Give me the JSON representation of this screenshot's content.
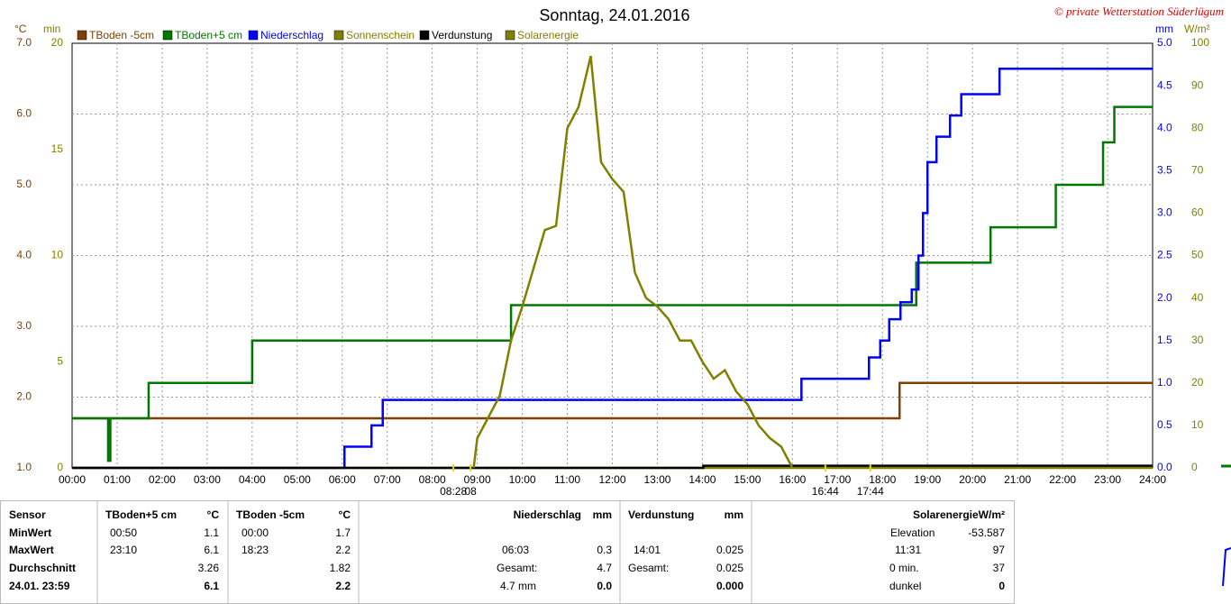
{
  "chart_data": {
    "type": "line",
    "title": "Sonntag, 24.01.2016",
    "credit": "© private Wetterstation Süderlügum",
    "axis_units": {
      "y": "°C",
      "y3": "min",
      "y2": "mm",
      "y4": "W/m²"
    },
    "xlim": [
      0,
      24
    ],
    "xticks": [
      {
        "value": 0,
        "label": "00:00"
      },
      {
        "value": 1,
        "label": "01:00"
      },
      {
        "value": 2,
        "label": "02:00"
      },
      {
        "value": 3,
        "label": "03:00"
      },
      {
        "value": 4,
        "label": "04:00"
      },
      {
        "value": 5,
        "label": "05:00"
      },
      {
        "value": 6,
        "label": "06:00"
      },
      {
        "value": 7,
        "label": "07:00"
      },
      {
        "value": 8,
        "label": "08:00"
      },
      {
        "value": 9,
        "label": "09:00"
      },
      {
        "value": 10,
        "label": "10:00"
      },
      {
        "value": 11,
        "label": "11:00"
      },
      {
        "value": 12,
        "label": "12:00"
      },
      {
        "value": 13,
        "label": "13:00"
      },
      {
        "value": 14,
        "label": "14:00"
      },
      {
        "value": 15,
        "label": "15:00"
      },
      {
        "value": 16,
        "label": "16:00"
      },
      {
        "value": 17,
        "label": "17:00"
      },
      {
        "value": 18,
        "label": "18:00"
      },
      {
        "value": 19,
        "label": "19:00"
      },
      {
        "value": 20,
        "label": "20:00"
      },
      {
        "value": 21,
        "label": "21:00"
      },
      {
        "value": 22,
        "label": "22:00"
      },
      {
        "value": 23,
        "label": "23:00"
      },
      {
        "value": 24,
        "label": "24:00"
      }
    ],
    "ylim": [
      1,
      7
    ],
    "yticks": [
      {
        "value": 1,
        "label": "1.0"
      },
      {
        "value": 2,
        "label": "2.0"
      },
      {
        "value": 3,
        "label": "3.0"
      },
      {
        "value": 4,
        "label": "4.0"
      },
      {
        "value": 5,
        "label": "5.0"
      },
      {
        "value": 6,
        "label": "6.0"
      },
      {
        "value": 7,
        "label": "7.0"
      }
    ],
    "y3lim": [
      0,
      20
    ],
    "y3ticks": [
      0,
      5,
      10,
      15,
      20
    ],
    "y2lim": [
      0,
      5
    ],
    "y2ticks": [
      {
        "value": 0,
        "label": "0.0"
      },
      {
        "value": 0.5,
        "label": "0.5"
      },
      {
        "value": 1,
        "label": "1.0"
      },
      {
        "value": 1.5,
        "label": "1.5"
      },
      {
        "value": 2,
        "label": "2.0"
      },
      {
        "value": 2.5,
        "label": "2.5"
      },
      {
        "value": 3,
        "label": "3.0"
      },
      {
        "value": 3.5,
        "label": "3.5"
      },
      {
        "value": 4,
        "label": "4.0"
      },
      {
        "value": 4.5,
        "label": "4.5"
      },
      {
        "value": 5,
        "label": "5.0"
      }
    ],
    "y4lim": [
      0,
      100
    ],
    "y4ticks": [
      0,
      10,
      20,
      30,
      40,
      50,
      60,
      70,
      80,
      90,
      100
    ],
    "grid": true,
    "series": [
      {
        "name": "TBoden -5cm",
        "color": "#804000",
        "axis": "y",
        "step": true,
        "x": [
          0,
          18.38,
          24
        ],
        "values": [
          1.7,
          2.2,
          2.2
        ]
      },
      {
        "name": "TBoden+5 cm",
        "color": "#007800",
        "axis": "y",
        "step": true,
        "x": [
          0,
          0.8,
          0.85,
          1.7,
          4.0,
          9.75,
          18.75,
          20.4,
          21.85,
          22.9,
          23.15,
          24
        ],
        "values": [
          1.7,
          1.1,
          1.7,
          2.2,
          2.8,
          3.3,
          3.9,
          4.4,
          5.0,
          5.6,
          6.1,
          6.1
        ]
      },
      {
        "name": "Niederschlag",
        "color": "#0000ff",
        "axis": "y2",
        "step": true,
        "x": [
          0,
          6.05,
          6.65,
          6.9,
          16.2,
          17.7,
          17.95,
          18.15,
          18.4,
          18.65,
          18.8,
          18.9,
          19.0,
          19.2,
          19.5,
          19.75,
          20.6,
          24
        ],
        "values": [
          0,
          0.25,
          0.5,
          0.8,
          1.05,
          1.3,
          1.5,
          1.75,
          1.95,
          2.1,
          2.5,
          3.0,
          3.6,
          3.9,
          4.15,
          4.4,
          4.7,
          4.7
        ]
      },
      {
        "name": "Sonnenschein",
        "color": "#808000",
        "axis": "y3",
        "step": true,
        "x": [
          0,
          24
        ],
        "values": [
          0,
          0
        ]
      },
      {
        "name": "Verdunstung",
        "color": "#000000",
        "axis": "y2",
        "step": true,
        "x": [
          0,
          14.02,
          24
        ],
        "values": [
          0,
          0.025,
          0.025
        ]
      },
      {
        "name": "Solarenergie",
        "color": "#808000",
        "axis": "y4",
        "step": false,
        "x": [
          8.92,
          9.0,
          9.25,
          9.5,
          9.75,
          10.0,
          10.25,
          10.5,
          10.75,
          11.0,
          11.25,
          11.52,
          11.75,
          12.0,
          12.25,
          12.5,
          12.75,
          13.0,
          13.25,
          13.5,
          13.75,
          14.0,
          14.25,
          14.5,
          14.75,
          15.0,
          15.25,
          15.5,
          15.75,
          16.0
        ],
        "values": [
          0,
          7,
          12,
          17,
          30,
          38,
          47,
          56,
          57,
          80,
          85,
          97,
          72,
          68,
          65,
          46,
          40,
          38,
          35,
          30,
          30,
          25,
          21,
          23,
          18,
          15,
          10,
          7,
          5,
          0
        ]
      }
    ],
    "annotations": [
      {
        "x": 8.47,
        "label": "08:28"
      },
      {
        "x": 8.85,
        "label": "08"
      },
      {
        "x": 16.73,
        "label": "16:44"
      },
      {
        "x": 17.73,
        "label": "17:44"
      }
    ]
  },
  "table": {
    "rows": [
      [
        "Sensor",
        "TBoden+5 cm",
        "°C",
        "TBoden -5cm",
        "°C",
        "Niederschlag",
        "mm",
        "Verdunstung",
        "mm",
        "SolarenergieW/m²"
      ],
      [
        "MinWert",
        "00:50",
        "1.1",
        "00:00",
        "1.7",
        "Elevation",
        "-53.587"
      ],
      [
        "MaxWert",
        "23:10",
        "6.1",
        "18:23",
        "2.2",
        "06:03",
        "0.3",
        "14:01",
        "0.025",
        "11:31",
        "97"
      ],
      [
        "Durchschnitt",
        "3.26",
        "1.82",
        "Gesamt:",
        "4.7",
        "Gesamt:",
        "0.025",
        "0 min.",
        "37"
      ],
      [
        "24.01. 23:59",
        "6.1",
        "2.2",
        "4.7 mm",
        "0.0",
        "0.000",
        "dunkel",
        "0"
      ]
    ]
  }
}
